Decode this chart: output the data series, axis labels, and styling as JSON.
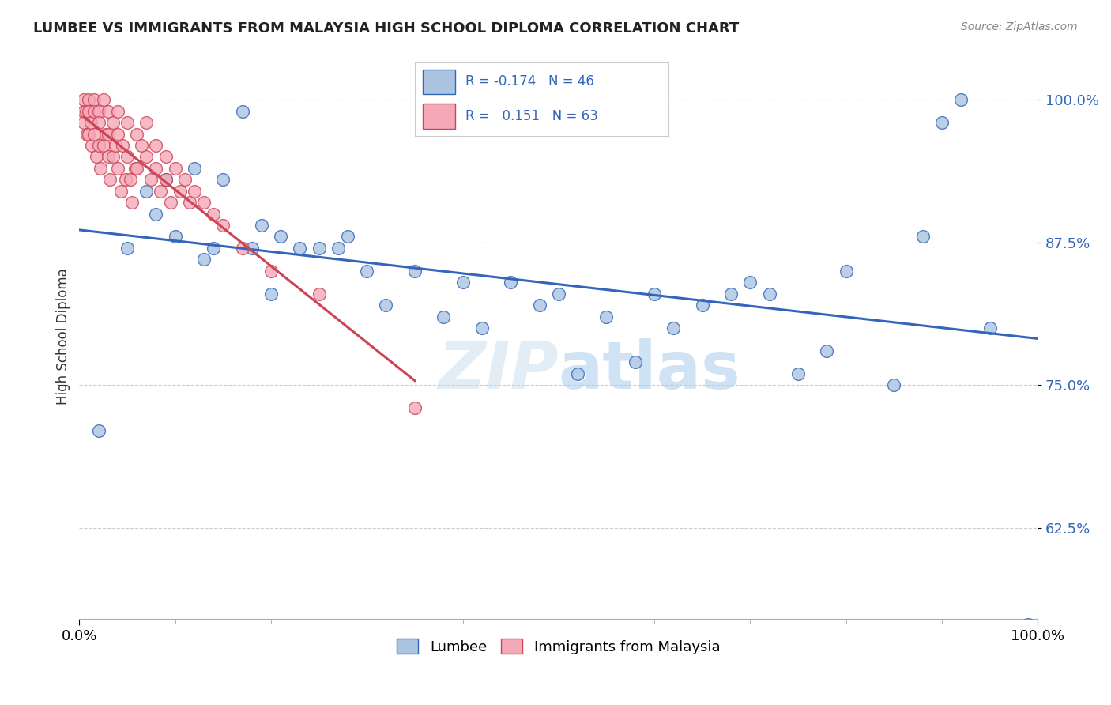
{
  "title": "LUMBEE VS IMMIGRANTS FROM MALAYSIA HIGH SCHOOL DIPLOMA CORRELATION CHART",
  "source_text": "Source: ZipAtlas.com",
  "ylabel": "High School Diploma",
  "yticks": [
    0.625,
    0.75,
    0.875,
    1.0
  ],
  "ytick_labels": [
    "62.5%",
    "75.0%",
    "87.5%",
    "100.0%"
  ],
  "xlim": [
    0.0,
    1.0
  ],
  "ylim": [
    0.545,
    1.04
  ],
  "legend_blue_R": "-0.174",
  "legend_blue_N": "46",
  "legend_pink_R": "0.151",
  "legend_pink_N": "63",
  "legend_label_blue": "Lumbee",
  "legend_label_pink": "Immigrants from Malaysia",
  "blue_color": "#aac4e2",
  "pink_color": "#f4a8b8",
  "blue_line_color": "#3366bb",
  "pink_line_color": "#cc4455",
  "watermark": "ZIPatlas",
  "background_color": "#ffffff",
  "blue_scatter_x": [
    0.02,
    0.05,
    0.07,
    0.08,
    0.09,
    0.1,
    0.12,
    0.13,
    0.14,
    0.15,
    0.17,
    0.18,
    0.19,
    0.2,
    0.21,
    0.23,
    0.25,
    0.27,
    0.28,
    0.3,
    0.32,
    0.35,
    0.38,
    0.4,
    0.42,
    0.45,
    0.48,
    0.5,
    0.52,
    0.55,
    0.58,
    0.6,
    0.62,
    0.65,
    0.68,
    0.7,
    0.72,
    0.75,
    0.78,
    0.8,
    0.85,
    0.88,
    0.9,
    0.92,
    0.95,
    0.99
  ],
  "blue_scatter_y": [
    0.71,
    0.87,
    0.92,
    0.9,
    0.93,
    0.88,
    0.94,
    0.86,
    0.87,
    0.93,
    0.99,
    0.87,
    0.89,
    0.83,
    0.88,
    0.87,
    0.87,
    0.87,
    0.88,
    0.85,
    0.82,
    0.85,
    0.81,
    0.84,
    0.8,
    0.84,
    0.82,
    0.83,
    0.76,
    0.81,
    0.77,
    0.83,
    0.8,
    0.82,
    0.83,
    0.84,
    0.83,
    0.76,
    0.78,
    0.85,
    0.75,
    0.88,
    0.98,
    1.0,
    0.8,
    0.54
  ],
  "pink_scatter_x": [
    0.005,
    0.005,
    0.005,
    0.007,
    0.008,
    0.01,
    0.01,
    0.01,
    0.012,
    0.013,
    0.015,
    0.015,
    0.015,
    0.018,
    0.02,
    0.02,
    0.02,
    0.022,
    0.025,
    0.025,
    0.028,
    0.03,
    0.03,
    0.03,
    0.032,
    0.035,
    0.035,
    0.038,
    0.04,
    0.04,
    0.04,
    0.043,
    0.045,
    0.048,
    0.05,
    0.05,
    0.053,
    0.055,
    0.058,
    0.06,
    0.06,
    0.065,
    0.07,
    0.07,
    0.075,
    0.08,
    0.08,
    0.085,
    0.09,
    0.09,
    0.095,
    0.1,
    0.105,
    0.11,
    0.115,
    0.12,
    0.13,
    0.14,
    0.15,
    0.17,
    0.2,
    0.25,
    0.35
  ],
  "pink_scatter_y": [
    1.0,
    0.99,
    0.98,
    0.99,
    0.97,
    1.0,
    0.99,
    0.97,
    0.98,
    0.96,
    1.0,
    0.99,
    0.97,
    0.95,
    0.99,
    0.98,
    0.96,
    0.94,
    1.0,
    0.96,
    0.97,
    0.99,
    0.97,
    0.95,
    0.93,
    0.98,
    0.95,
    0.96,
    0.99,
    0.97,
    0.94,
    0.92,
    0.96,
    0.93,
    0.98,
    0.95,
    0.93,
    0.91,
    0.94,
    0.97,
    0.94,
    0.96,
    0.98,
    0.95,
    0.93,
    0.96,
    0.94,
    0.92,
    0.95,
    0.93,
    0.91,
    0.94,
    0.92,
    0.93,
    0.91,
    0.92,
    0.91,
    0.9,
    0.89,
    0.87,
    0.85,
    0.83,
    0.73
  ]
}
